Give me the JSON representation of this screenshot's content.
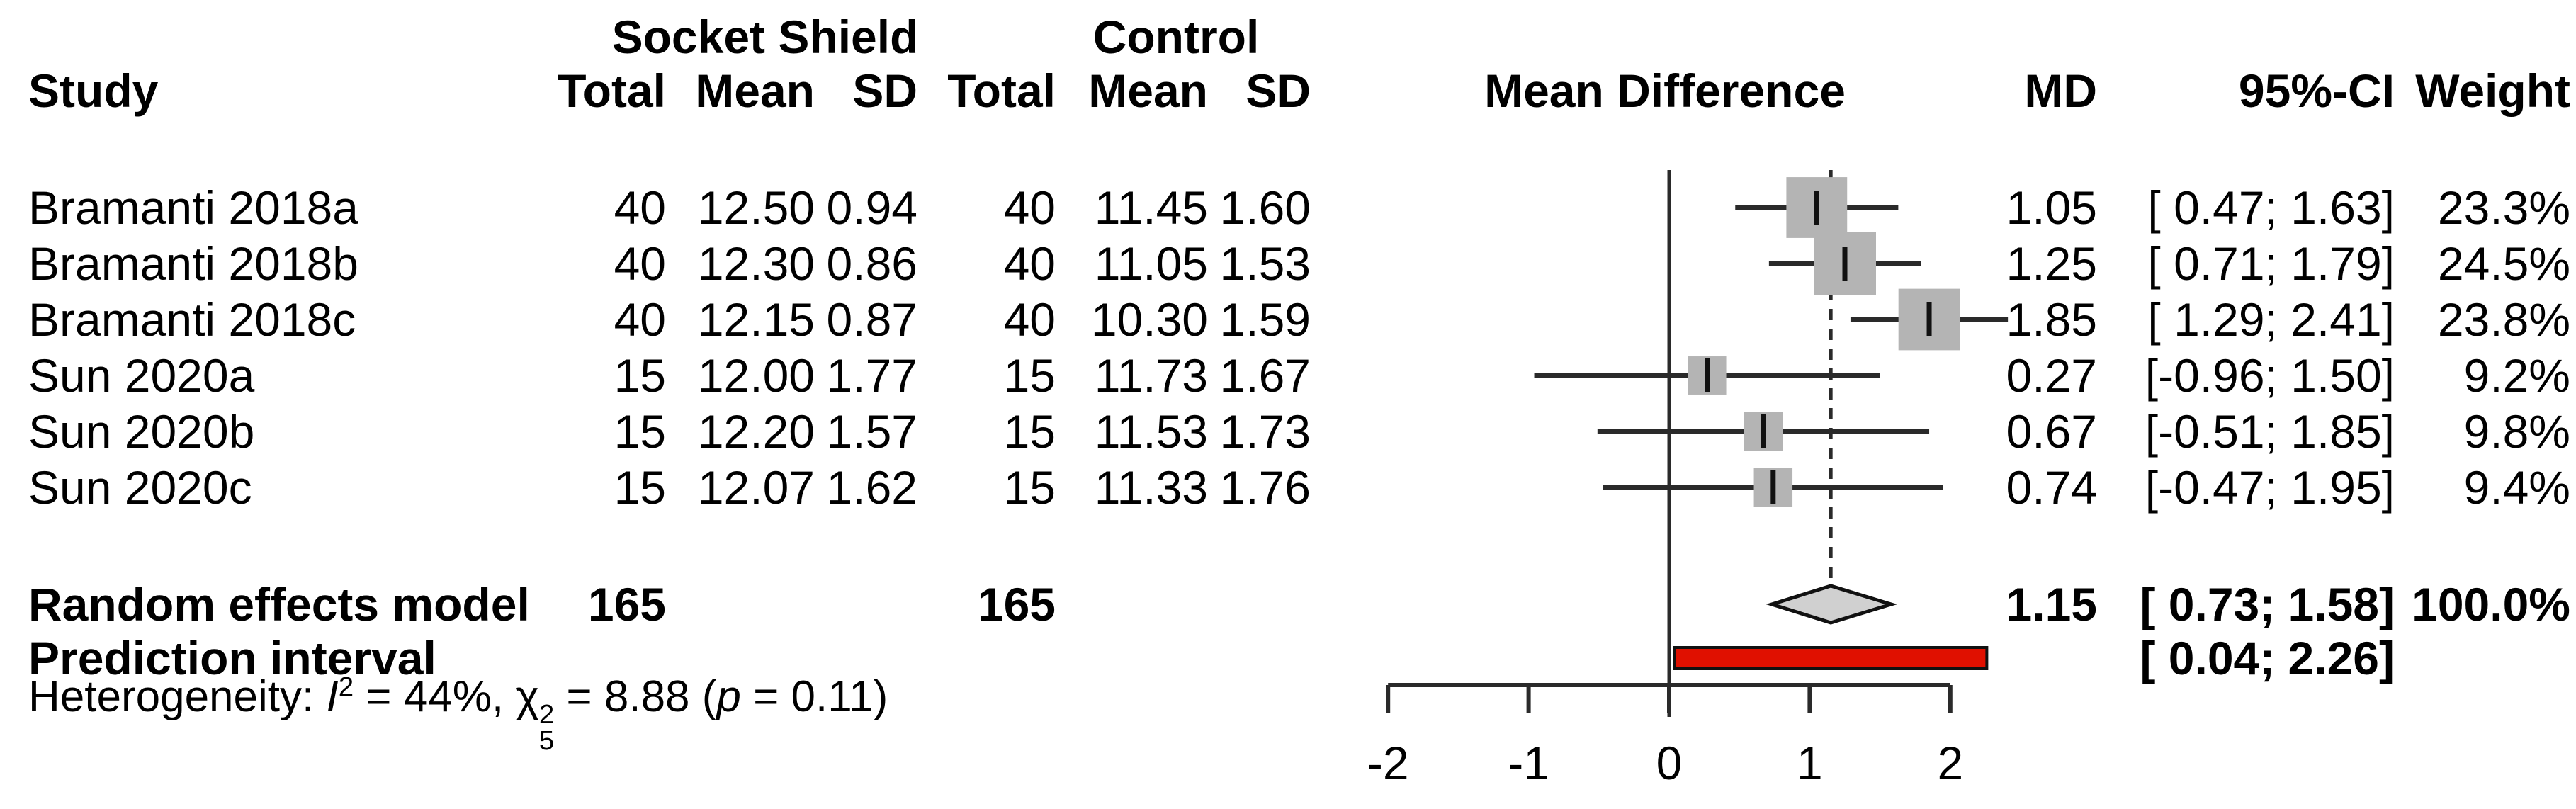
{
  "header": {
    "group1": "Socket Shield",
    "group2": "Control",
    "study": "Study",
    "total": "Total",
    "mean": "Mean",
    "sd": "SD",
    "effect": "Mean Difference",
    "md": "MD",
    "ci": "95%-CI",
    "weight": "Weight"
  },
  "studies": [
    {
      "name": "Bramanti 2018a",
      "ss_total": "40",
      "ss_mean": "12.50",
      "ss_sd": "0.94",
      "c_total": "40",
      "c_mean": "11.45",
      "c_sd": "1.60",
      "md": "1.05",
      "ci": "[ 0.47; 1.63]",
      "weight": "23.3%"
    },
    {
      "name": "Bramanti 2018b",
      "ss_total": "40",
      "ss_mean": "12.30",
      "ss_sd": "0.86",
      "c_total": "40",
      "c_mean": "11.05",
      "c_sd": "1.53",
      "md": "1.25",
      "ci": "[ 0.71; 1.79]",
      "weight": "24.5%"
    },
    {
      "name": "Bramanti 2018c",
      "ss_total": "40",
      "ss_mean": "12.15",
      "ss_sd": "0.87",
      "c_total": "40",
      "c_mean": "10.30",
      "c_sd": "1.59",
      "md": "1.85",
      "ci": "[ 1.29; 2.41]",
      "weight": "23.8%"
    },
    {
      "name": "Sun 2020a",
      "ss_total": "15",
      "ss_mean": "12.00",
      "ss_sd": "1.77",
      "c_total": "15",
      "c_mean": "11.73",
      "c_sd": "1.67",
      "md": "0.27",
      "ci": "[-0.96; 1.50]",
      "weight": "9.2%"
    },
    {
      "name": "Sun 2020b",
      "ss_total": "15",
      "ss_mean": "12.20",
      "ss_sd": "1.57",
      "c_total": "15",
      "c_mean": "11.53",
      "c_sd": "1.73",
      "md": "0.67",
      "ci": "[-0.51; 1.85]",
      "weight": "9.8%"
    },
    {
      "name": "Sun 2020c",
      "ss_total": "15",
      "ss_mean": "12.07",
      "ss_sd": "1.62",
      "c_total": "15",
      "c_mean": "11.33",
      "c_sd": "1.76",
      "md": "0.74",
      "ci": "[-0.47; 1.95]",
      "weight": "9.4%"
    }
  ],
  "summary": {
    "label": "Random effects model",
    "ss_total": "165",
    "c_total": "165",
    "md": "1.15",
    "ci": "[ 0.73; 1.58]",
    "weight": "100.0%"
  },
  "prediction": {
    "label": "Prediction interval",
    "ci": "[ 0.04; 2.26]"
  },
  "heterogeneity": {
    "prefix": "Heterogeneity: ",
    "i": "I",
    "i_sup": "2",
    "mid1": " = 44%, ",
    "chi": "χ",
    "chi_sup": "2",
    "chi_sub": "5",
    "mid2": " = 8.88 (",
    "p": "p",
    "tail": " = 0.11)"
  },
  "chart_data": {
    "type": "forest",
    "effect_measure": "Mean Difference",
    "title": "",
    "xlabel": "",
    "xlim": [
      -2,
      2
    ],
    "ticks": [
      -2,
      -1,
      0,
      1,
      2
    ],
    "tick_labels": [
      "-2",
      "-1",
      "0",
      "1",
      "2"
    ],
    "zero_line": 0,
    "pooled_dashed_line": 1.15,
    "grid": false,
    "studies": [
      {
        "name": "Bramanti 2018a",
        "md": 1.05,
        "ci": [
          0.47,
          1.63
        ],
        "weight_pct": 23.3
      },
      {
        "name": "Bramanti 2018b",
        "md": 1.25,
        "ci": [
          0.71,
          1.79
        ],
        "weight_pct": 24.5
      },
      {
        "name": "Bramanti 2018c",
        "md": 1.85,
        "ci": [
          1.29,
          2.41
        ],
        "weight_pct": 23.8
      },
      {
        "name": "Sun 2020a",
        "md": 0.27,
        "ci": [
          -0.96,
          1.5
        ],
        "weight_pct": 9.2
      },
      {
        "name": "Sun 2020b",
        "md": 0.67,
        "ci": [
          -0.51,
          1.85
        ],
        "weight_pct": 9.8
      },
      {
        "name": "Sun 2020c",
        "md": 0.74,
        "ci": [
          -0.47,
          1.95
        ],
        "weight_pct": 9.4
      }
    ],
    "pooled": {
      "name": "Random effects model",
      "md": 1.15,
      "ci": [
        0.73,
        1.58
      ],
      "weight_pct": 100.0,
      "total_ss": 165,
      "total_control": 165
    },
    "prediction_interval": [
      0.04,
      2.26
    ],
    "heterogeneity": {
      "I2_pct": 44,
      "chi2": 8.88,
      "df": 5,
      "p": 0.11
    },
    "colors": {
      "square": "#b4b4b4",
      "diamond_fill": "#d0d0d0",
      "diamond_stroke": "#111111",
      "prediction_fill": "#e01000",
      "prediction_stroke": "#111111",
      "line": "#2a2a2a",
      "marker": "#111111",
      "text": "#000000"
    }
  }
}
